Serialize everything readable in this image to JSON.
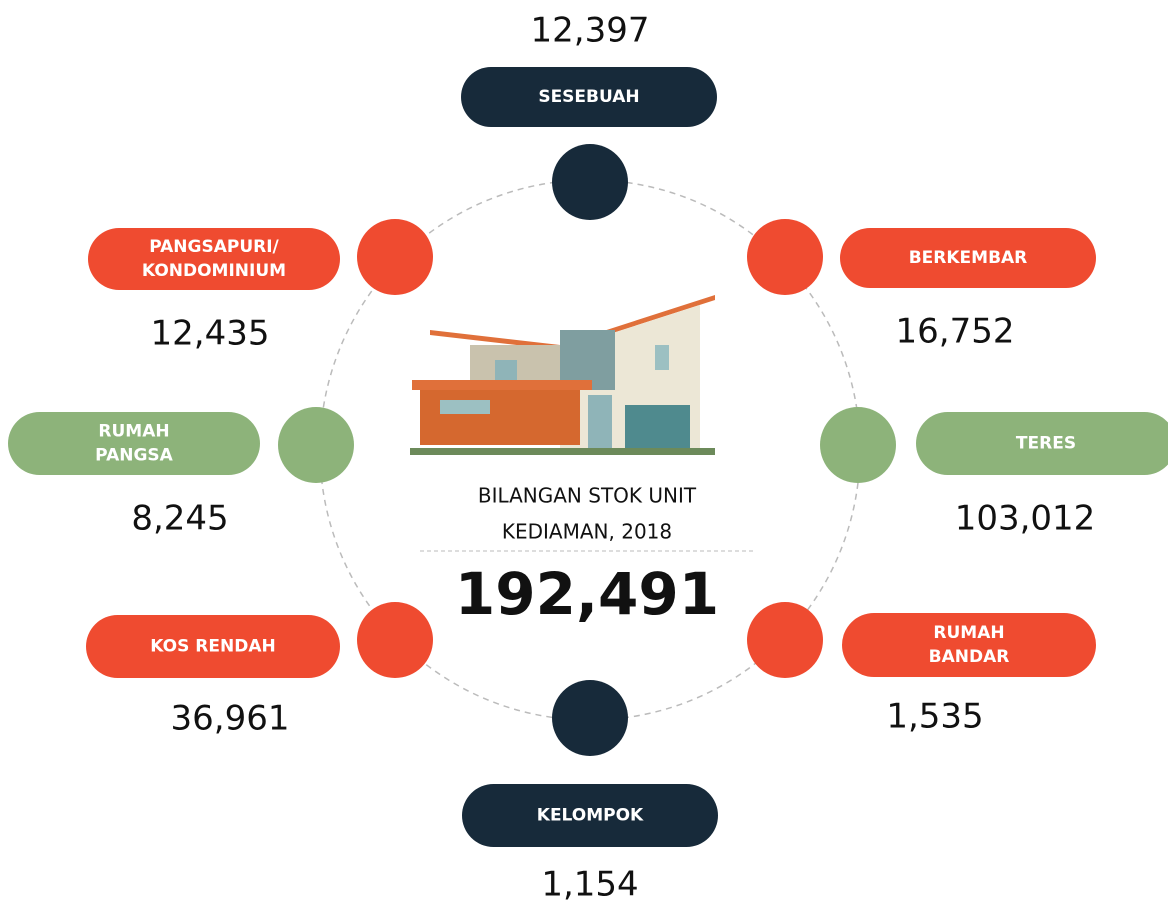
{
  "center": {
    "title": [
      "BILANGAN STOK UNIT",
      "KEDIAMAN, 2018"
    ],
    "total": "192,491"
  },
  "nodes": [
    {
      "label": [
        "SESEBUAH"
      ],
      "value": "12,397"
    },
    {
      "label": [
        "BERKEMBAR"
      ],
      "value": "16,752"
    },
    {
      "label": [
        "TERES"
      ],
      "value": "103,012"
    },
    {
      "label": [
        "RUMAH",
        "BANDAR"
      ],
      "value": "1,535"
    },
    {
      "label": [
        "KELOMPOK"
      ],
      "value": "1,154"
    },
    {
      "label": [
        "KOS RENDAH"
      ],
      "value": "36,961"
    },
    {
      "label": [
        "RUMAH",
        "PANGSA"
      ],
      "value": "8,245"
    },
    {
      "label": [
        "PANGSAPURI/",
        "KONDOMINIUM"
      ],
      "value": "12,435"
    }
  ]
}
